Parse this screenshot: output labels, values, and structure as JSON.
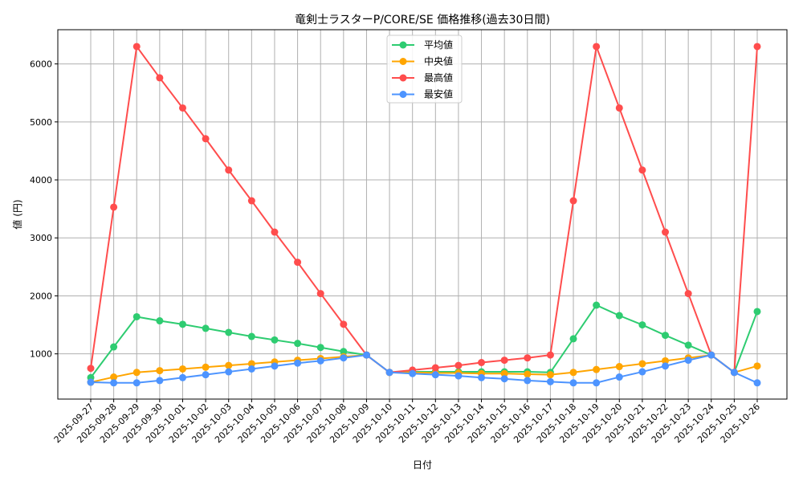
{
  "chart_data": {
    "type": "line",
    "title": "竜剣士ラスターP/CORE/SE 価格推移(過去30日間)",
    "xlabel": "日付",
    "ylabel": "値 (円)",
    "ylim": [
      220,
      6590
    ],
    "yticks": [
      1000,
      2000,
      3000,
      4000,
      5000,
      6000
    ],
    "grid": true,
    "legend_position": "top-center",
    "x": [
      "2025-09-27",
      "2025-09-28",
      "2025-09-29",
      "2025-09-30",
      "2025-10-01",
      "2025-10-02",
      "2025-10-03",
      "2025-10-04",
      "2025-10-05",
      "2025-10-06",
      "2025-10-07",
      "2025-10-08",
      "2025-10-09",
      "2025-10-10",
      "2025-10-11",
      "2025-10-12",
      "2025-10-13",
      "2025-10-14",
      "2025-10-15",
      "2025-10-16",
      "2025-10-17",
      "2025-10-18",
      "2025-10-19",
      "2025-10-20",
      "2025-10-21",
      "2025-10-22",
      "2025-10-23",
      "2025-10-24",
      "2025-10-25",
      "2025-10-26"
    ],
    "series": [
      {
        "name": "平均値",
        "color": "#2ecc71",
        "values": [
          590,
          1120,
          1640,
          1570,
          1510,
          1440,
          1370,
          1300,
          1240,
          1180,
          1110,
          1040,
          980,
          680,
          690,
          690,
          690,
          690,
          690,
          690,
          680,
          1260,
          1840,
          1660,
          1500,
          1320,
          1150,
          980,
          680,
          1730
        ]
      },
      {
        "name": "中央値",
        "color": "#ffa500",
        "values": [
          510,
          600,
          680,
          710,
          740,
          770,
          800,
          830,
          860,
          890,
          920,
          950,
          980,
          680,
          680,
          670,
          670,
          660,
          660,
          650,
          640,
          680,
          730,
          780,
          830,
          880,
          930,
          980,
          680,
          790
        ]
      },
      {
        "name": "最高値",
        "color": "#ff4d4d",
        "values": [
          750,
          3530,
          6300,
          5760,
          5240,
          4710,
          4170,
          3640,
          3100,
          2580,
          2040,
          1510,
          980,
          680,
          720,
          760,
          800,
          850,
          890,
          930,
          980,
          3640,
          6300,
          5240,
          4170,
          3100,
          2040,
          980,
          680,
          6300
        ]
      },
      {
        "name": "最安値",
        "color": "#4d94ff",
        "values": [
          510,
          500,
          500,
          540,
          590,
          640,
          690,
          740,
          790,
          840,
          880,
          930,
          980,
          680,
          660,
          640,
          620,
          590,
          570,
          540,
          520,
          500,
          500,
          600,
          690,
          790,
          890,
          980,
          680,
          500
        ]
      }
    ]
  }
}
